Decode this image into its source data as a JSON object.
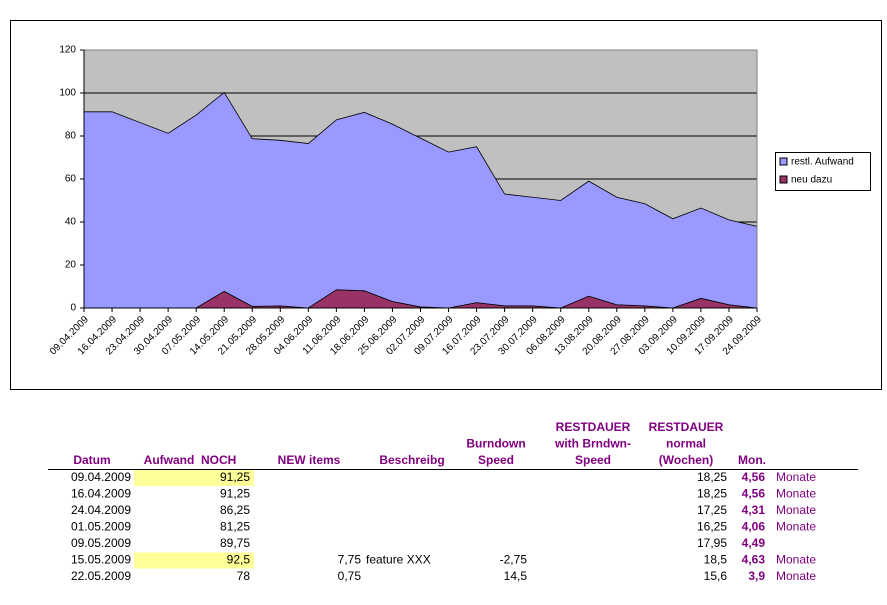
{
  "chart_data": {
    "type": "stacked-area",
    "categories": [
      "09.04.2009",
      "16.04.2009",
      "23.04.2009",
      "30.04.2009",
      "07.05.2009",
      "14.05.2009",
      "21.05.2009",
      "28.05.2009",
      "04.06.2009",
      "11.06.2009",
      "18.06.2009",
      "25.06.2009",
      "02.07.2009",
      "09.07.2009",
      "16.07.2009",
      "23.07.2009",
      "30.07.2009",
      "06.08.2009",
      "13.08.2009",
      "20.08.2009",
      "27.08.2009",
      "03.09.2009",
      "10.09.2009",
      "17.09.2009",
      "24.09.2009"
    ],
    "series": [
      {
        "name": "restl. Aufwand",
        "color": "#9999ff",
        "values": [
          91.25,
          91.25,
          86.25,
          81.25,
          89.75,
          92.5,
          78,
          77,
          76.5,
          79,
          83,
          82.5,
          78.5,
          72.5,
          72.5,
          52,
          50.5,
          50,
          53.5,
          50,
          47.5,
          41.5,
          42,
          39.5,
          38
        ]
      },
      {
        "name": "neu dazu",
        "color": "#993366",
        "values": [
          0,
          0,
          0,
          0,
          0,
          7.75,
          0.75,
          1,
          0,
          8.5,
          8,
          3,
          0.5,
          0,
          2.5,
          1,
          1,
          0,
          5.5,
          1.5,
          1,
          0,
          4.5,
          1.5,
          0
        ]
      }
    ],
    "ylim": [
      0,
      120
    ],
    "yticks": [
      0,
      20,
      40,
      60,
      80,
      100,
      120
    ],
    "grid": true,
    "plot_background": "#c0c0c0",
    "legend": "right"
  },
  "table": {
    "header": [
      [
        "Datum"
      ],
      [
        "Aufwand  NOCH"
      ],
      [
        "NEW items"
      ],
      [
        "Beschreibg"
      ],
      [
        "Burndown",
        "Speed"
      ],
      [
        "RESTDAUER",
        "with Brndwn-",
        "Speed"
      ],
      [
        "RESTDAUER",
        "normal",
        "(Wochen)"
      ],
      [
        "Mon."
      ]
    ],
    "highlight_color": "#ffff99",
    "rows": [
      {
        "date": "09.04.2009",
        "aufwand": "91,25",
        "highlight": true,
        "weeks": "18,25",
        "months": "4,56",
        "unit": "Monate"
      },
      {
        "date": "16.04.2009",
        "aufwand": "91,25",
        "weeks": "18,25",
        "months": "4,56",
        "unit": "Monate"
      },
      {
        "date": "24.04.2009",
        "aufwand": "86,25",
        "weeks": "17,25",
        "months": "4,31",
        "unit": "Monate"
      },
      {
        "date": "01.05.2009",
        "aufwand": "81,25",
        "weeks": "16,25",
        "months": "4,06",
        "unit": "Monate"
      },
      {
        "date": "09.05.2009",
        "aufwand": "89,75",
        "weeks": "17,95",
        "months": "4,49"
      },
      {
        "date": "15.05.2009",
        "aufwand": "92,5",
        "highlight": true,
        "new": "7,75",
        "desc": "feature XXX",
        "speed": "-2,75",
        "weeks": "18,5",
        "months": "4,63",
        "unit": "Monate"
      },
      {
        "date": "22.05.2009",
        "aufwand": "78",
        "new": "0,75",
        "speed": "14,5",
        "weeks": "15,6",
        "months": "3,9",
        "unit": "Monate"
      }
    ]
  }
}
